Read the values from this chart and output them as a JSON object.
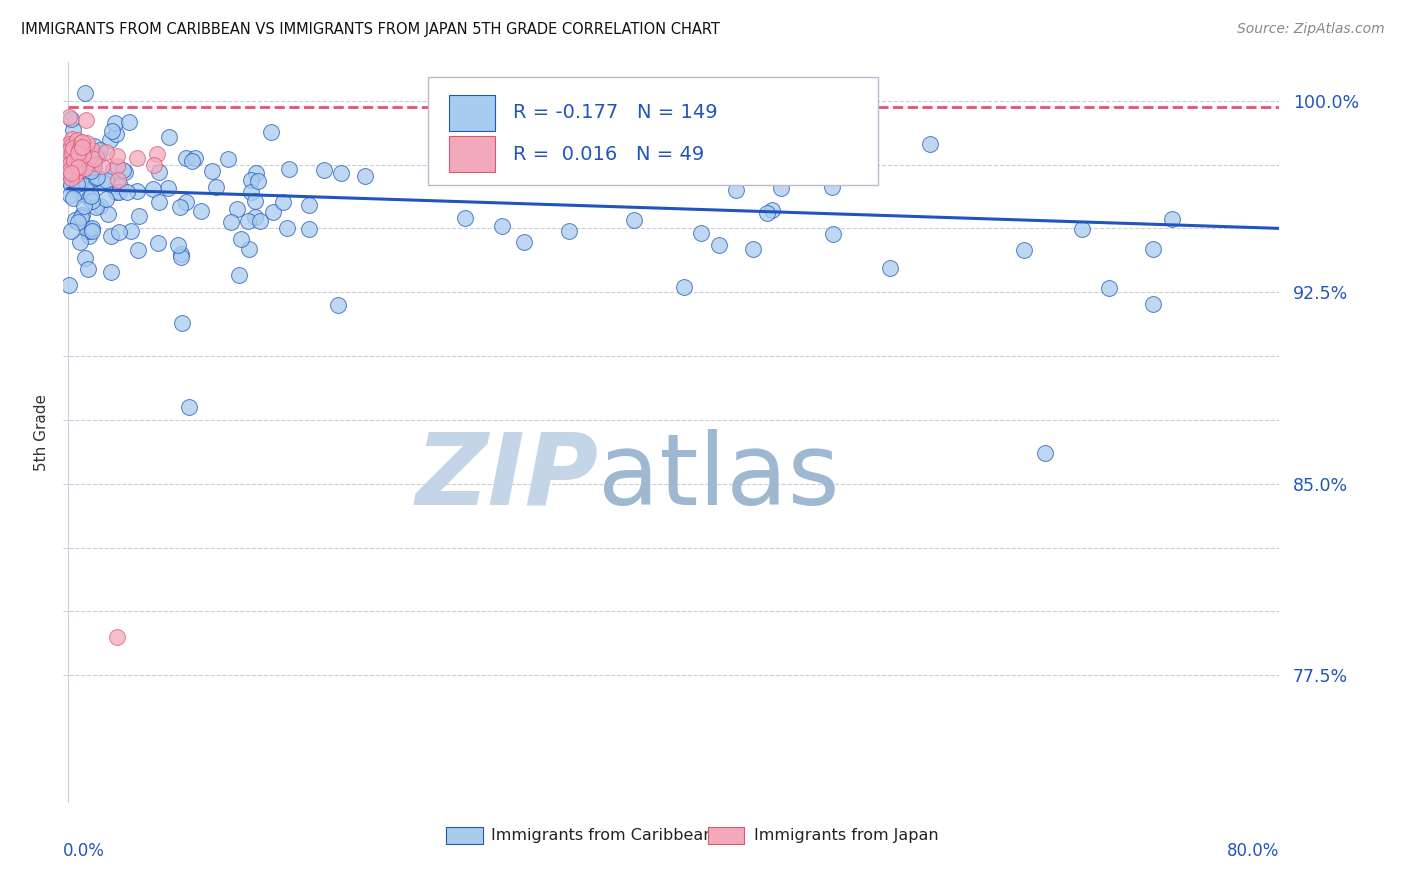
{
  "title": "IMMIGRANTS FROM CARIBBEAN VS IMMIGRANTS FROM JAPAN 5TH GRADE CORRELATION CHART",
  "source": "Source: ZipAtlas.com",
  "ylabel": "5th Grade",
  "R_blue": -0.177,
  "N_blue": 149,
  "R_pink": 0.016,
  "N_pink": 49,
  "color_blue": "#A8CCEE",
  "color_pink": "#F2AABB",
  "line_color_blue": "#2255BB",
  "line_color_pink": "#DD5577",
  "watermark_zip": "ZIP",
  "watermark_atlas": "atlas",
  "watermark_color_zip": "#C5D5E8",
  "watermark_color_atlas": "#9DB8D0",
  "legend_label_blue": "Immigrants from Caribbean",
  "legend_label_pink": "Immigrants from Japan",
  "ytick_positions": [
    0.775,
    0.8,
    0.825,
    0.85,
    0.875,
    0.9,
    0.925,
    0.95,
    0.975,
    1.0
  ],
  "ytick_labels": [
    "77.5%",
    "",
    "",
    "85.0%",
    "",
    "",
    "92.5%",
    "",
    "",
    "100.0%"
  ],
  "ylim": [
    0.725,
    1.015
  ],
  "xlim": [
    -0.003,
    0.8
  ]
}
